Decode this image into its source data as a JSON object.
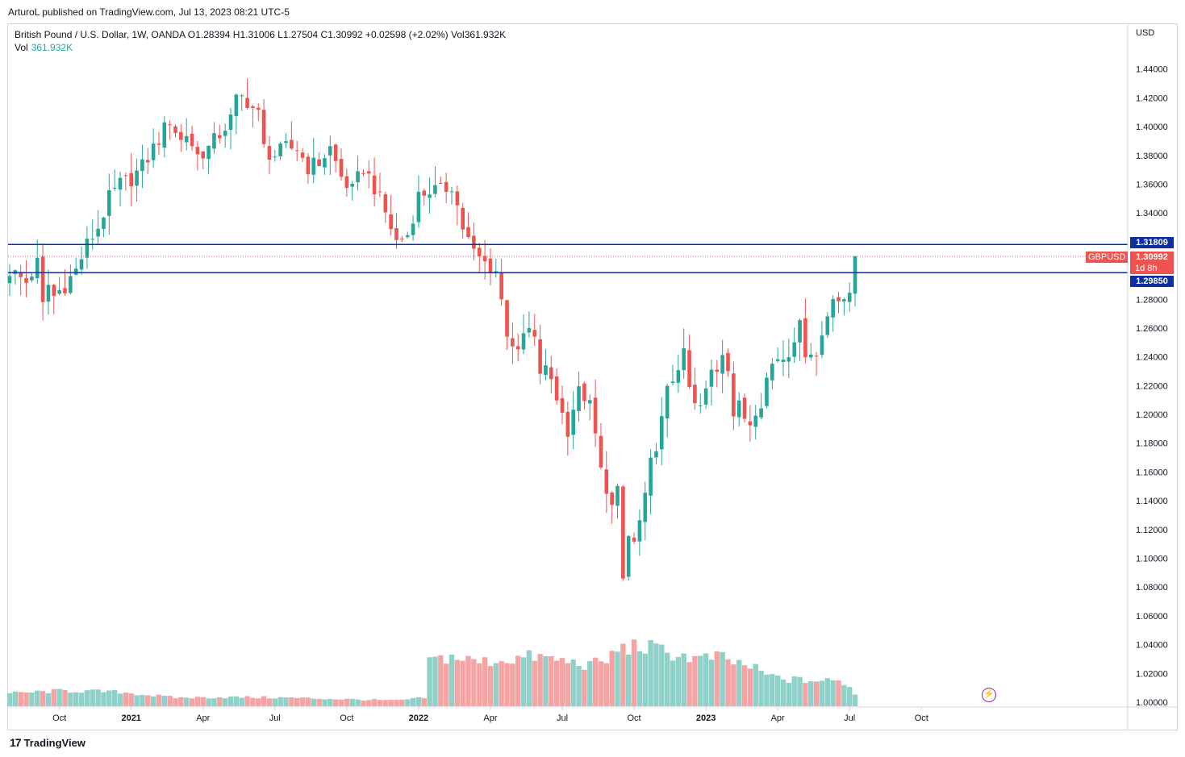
{
  "header": {
    "publisher_line": "ArturoL published on TradingView.com, Jul 13, 2023 08:21 UTC-5"
  },
  "legend": {
    "symbol_line": "British Pound / U.S. Dollar, 1W, OANDA  O1.28394  H1.31006  L1.27504  C1.30992  +0.02598 (+2.02%)  Vol361.932K",
    "vol_label": "Vol",
    "vol_value": "361.932K"
  },
  "price_axis": {
    "currency": "USD"
  },
  "markers": {
    "upper_level": "1.31809",
    "last_price": "1.30992",
    "symbol": "GBPUSD",
    "countdown": "1d 8h",
    "lower_level": "1.29850"
  },
  "footer": {
    "brand": "TradingView",
    "logo_mark": "17"
  },
  "colors": {
    "up": "#26a69a",
    "down": "#ef5350",
    "vol_up": "#8fd1c9",
    "vol_down": "#f5a3a3",
    "level_line": "#0d2ea0",
    "last_price_line": "#ef5350"
  },
  "chart_data": {
    "type": "candlestick",
    "symbol": "GBPUSD",
    "interval": "1W",
    "ylim": [
      1.0,
      1.46
    ],
    "y_ticks": [
      "1.00000",
      "1.02000",
      "1.04000",
      "1.06000",
      "1.08000",
      "1.10000",
      "1.12000",
      "1.14000",
      "1.16000",
      "1.18000",
      "1.20000",
      "1.22000",
      "1.24000",
      "1.26000",
      "1.28000",
      "1.30000",
      "1.32000",
      "1.34000",
      "1.36000",
      "1.38000",
      "1.40000",
      "1.42000",
      "1.44000"
    ],
    "x_ticks": [
      {
        "label": "Oct",
        "bar": 9
      },
      {
        "label": "2021",
        "bar": 22
      },
      {
        "label": "Apr",
        "bar": 35
      },
      {
        "label": "Jul",
        "bar": 48
      },
      {
        "label": "Oct",
        "bar": 61
      },
      {
        "label": "2022",
        "bar": 74
      },
      {
        "label": "Apr",
        "bar": 87
      },
      {
        "label": "Jul",
        "bar": 100
      },
      {
        "label": "Oct",
        "bar": 113
      },
      {
        "label": "2023",
        "bar": 126
      },
      {
        "label": "Apr",
        "bar": 139
      },
      {
        "label": "Jul",
        "bar": 152
      },
      {
        "label": "Oct",
        "bar": 165
      }
    ],
    "horizontal_levels": [
      1.31809,
      1.2985
    ],
    "last_price": 1.30992,
    "close_points": [
      [
        0,
        1.3
      ],
      [
        3,
        1.292
      ],
      [
        5,
        1.305
      ],
      [
        6,
        1.275
      ],
      [
        7,
        1.29
      ],
      [
        8,
        1.282
      ],
      [
        10,
        1.29
      ],
      [
        12,
        1.3
      ],
      [
        14,
        1.318
      ],
      [
        16,
        1.33
      ],
      [
        18,
        1.35
      ],
      [
        20,
        1.36
      ],
      [
        22,
        1.364
      ],
      [
        24,
        1.372
      ],
      [
        26,
        1.385
      ],
      [
        28,
        1.398
      ],
      [
        29,
        1.405
      ],
      [
        31,
        1.39
      ],
      [
        32,
        1.395
      ],
      [
        34,
        1.38
      ],
      [
        36,
        1.385
      ],
      [
        38,
        1.395
      ],
      [
        40,
        1.405
      ],
      [
        41,
        1.418
      ],
      [
        42,
        1.42
      ],
      [
        43,
        1.418
      ],
      [
        44,
        1.413
      ],
      [
        45,
        1.408
      ],
      [
        46,
        1.385
      ],
      [
        47,
        1.382
      ],
      [
        48,
        1.38
      ],
      [
        50,
        1.385
      ],
      [
        52,
        1.385
      ],
      [
        54,
        1.372
      ],
      [
        56,
        1.375
      ],
      [
        58,
        1.385
      ],
      [
        60,
        1.365
      ],
      [
        62,
        1.355
      ],
      [
        64,
        1.372
      ],
      [
        66,
        1.358
      ],
      [
        68,
        1.34
      ],
      [
        70,
        1.32
      ],
      [
        72,
        1.325
      ],
      [
        74,
        1.352
      ],
      [
        76,
        1.356
      ],
      [
        78,
        1.355
      ],
      [
        80,
        1.36
      ],
      [
        82,
        1.33
      ],
      [
        84,
        1.312
      ],
      [
        86,
        1.305
      ],
      [
        88,
        1.3
      ],
      [
        90,
        1.258
      ],
      [
        91,
        1.25
      ],
      [
        92,
        1.24
      ],
      [
        93,
        1.255
      ],
      [
        94,
        1.258
      ],
      [
        95,
        1.25
      ],
      [
        96,
        1.23
      ],
      [
        97,
        1.23
      ],
      [
        98,
        1.225
      ],
      [
        100,
        1.2
      ],
      [
        101,
        1.19
      ],
      [
        102,
        1.205
      ],
      [
        103,
        1.215
      ],
      [
        104,
        1.213
      ],
      [
        105,
        1.205
      ],
      [
        106,
        1.185
      ],
      [
        107,
        1.16
      ],
      [
        108,
        1.15
      ],
      [
        109,
        1.135
      ],
      [
        110,
        1.145
      ],
      [
        111,
        1.085
      ],
      [
        112,
        1.115
      ],
      [
        113,
        1.11
      ],
      [
        114,
        1.125
      ],
      [
        115,
        1.14
      ],
      [
        116,
        1.165
      ],
      [
        117,
        1.18
      ],
      [
        118,
        1.195
      ],
      [
        119,
        1.215
      ],
      [
        120,
        1.225
      ],
      [
        121,
        1.235
      ],
      [
        122,
        1.24
      ],
      [
        123,
        1.218
      ],
      [
        124,
        1.205
      ],
      [
        125,
        1.205
      ],
      [
        126,
        1.215
      ],
      [
        127,
        1.23
      ],
      [
        128,
        1.232
      ],
      [
        129,
        1.245
      ],
      [
        130,
        1.235
      ],
      [
        131,
        1.2
      ],
      [
        132,
        1.205
      ],
      [
        133,
        1.198
      ],
      [
        134,
        1.195
      ],
      [
        135,
        1.205
      ],
      [
        136,
        1.21
      ],
      [
        137,
        1.225
      ],
      [
        138,
        1.235
      ],
      [
        139,
        1.24
      ],
      [
        140,
        1.24
      ],
      [
        141,
        1.245
      ],
      [
        142,
        1.255
      ],
      [
        143,
        1.26
      ],
      [
        144,
        1.245
      ],
      [
        145,
        1.245
      ],
      [
        146,
        1.24
      ],
      [
        147,
        1.255
      ],
      [
        148,
        1.27
      ],
      [
        149,
        1.285
      ],
      [
        150,
        1.28
      ],
      [
        151,
        1.275
      ],
      [
        152,
        1.285
      ],
      [
        153,
        1.31
      ]
    ],
    "volume_points": [
      [
        0,
        0.045
      ],
      [
        10,
        0.055
      ],
      [
        20,
        0.05
      ],
      [
        30,
        0.03
      ],
      [
        40,
        0.032
      ],
      [
        50,
        0.03
      ],
      [
        60,
        0.025
      ],
      [
        70,
        0.02
      ],
      [
        75,
        0.03
      ],
      [
        76,
        0.16
      ],
      [
        80,
        0.175
      ],
      [
        85,
        0.155
      ],
      [
        90,
        0.165
      ],
      [
        95,
        0.175
      ],
      [
        100,
        0.16
      ],
      [
        105,
        0.145
      ],
      [
        108,
        0.16
      ],
      [
        110,
        0.2
      ],
      [
        113,
        0.21
      ],
      [
        116,
        0.205
      ],
      [
        120,
        0.185
      ],
      [
        125,
        0.165
      ],
      [
        128,
        0.175
      ],
      [
        130,
        0.16
      ],
      [
        133,
        0.145
      ],
      [
        135,
        0.13
      ],
      [
        137,
        0.11
      ],
      [
        140,
        0.095
      ],
      [
        145,
        0.09
      ],
      [
        150,
        0.088
      ],
      [
        152,
        0.075
      ],
      [
        153,
        0.04
      ]
    ],
    "volume_ylim": [
      0,
      0.5
    ]
  }
}
